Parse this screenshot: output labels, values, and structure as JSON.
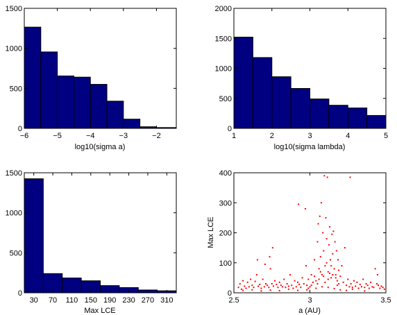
{
  "chart_data": [
    {
      "id": "hist-sigma-a",
      "type": "bar",
      "xlabel": "log10(sigma a)",
      "ylabel": "",
      "xlim": [
        -6,
        -1.4
      ],
      "ylim": [
        0,
        1500
      ],
      "xticks": [
        -6,
        -5,
        -4,
        -3,
        -2
      ],
      "xtick_labels": [
        "−6",
        "−5",
        "−4",
        "−3",
        "−2"
      ],
      "yticks": [
        0,
        500,
        1000,
        1500
      ],
      "bin_edges": [
        -6.0,
        -5.5,
        -5.0,
        -4.5,
        -4.0,
        -3.5,
        -3.0,
        -2.5,
        -2.0,
        -1.4
      ],
      "values": [
        1265,
        955,
        655,
        640,
        550,
        340,
        115,
        20,
        10
      ],
      "bar_color": "#000080"
    },
    {
      "id": "hist-sigma-lambda",
      "type": "bar",
      "xlabel": "log10(sigma lambda)",
      "ylabel": "",
      "xlim": [
        1,
        5
      ],
      "ylim": [
        0,
        2000
      ],
      "xticks": [
        1,
        2,
        3,
        4,
        5
      ],
      "xtick_labels": [
        "1",
        "2",
        "3",
        "4",
        "5"
      ],
      "yticks": [
        0,
        500,
        1000,
        1500,
        2000
      ],
      "bin_edges": [
        1.0,
        1.5,
        2.0,
        2.5,
        3.0,
        3.5,
        4.0,
        4.5,
        5.0
      ],
      "values": [
        1520,
        1180,
        860,
        665,
        490,
        385,
        340,
        215
      ],
      "bar_color": "#000080"
    },
    {
      "id": "hist-max-lce",
      "type": "bar",
      "xlabel": "Max LCE",
      "ylabel": "",
      "xlim": [
        10,
        330
      ],
      "ylim": [
        0,
        1500
      ],
      "xticks": [
        30,
        70,
        110,
        150,
        190,
        230,
        270,
        310
      ],
      "xtick_labels": [
        "30",
        "70",
        "110",
        "150",
        "190",
        "230",
        "270",
        "310"
      ],
      "yticks": [
        0,
        500,
        1000,
        1500
      ],
      "bin_edges": [
        10,
        50,
        90,
        130,
        170,
        210,
        250,
        290,
        330
      ],
      "values": [
        1425,
        240,
        185,
        150,
        90,
        65,
        35,
        25
      ],
      "bar_color": "#000080"
    },
    {
      "id": "scatter-a-vs-lce",
      "type": "scatter",
      "xlabel": "a (AU)",
      "ylabel": "Max LCE",
      "xlim": [
        2.5,
        3.5
      ],
      "ylim": [
        0,
        400
      ],
      "xticks": [
        2.5,
        3,
        3.5
      ],
      "xtick_labels": [
        "2.5",
        "3",
        "3.5"
      ],
      "yticks": [
        0,
        100,
        200,
        300,
        400
      ],
      "marker_color": "#ff0000",
      "points": [
        [
          2.53,
          18
        ],
        [
          2.54,
          30
        ],
        [
          2.55,
          12
        ],
        [
          2.56,
          40
        ],
        [
          2.57,
          22
        ],
        [
          2.58,
          15
        ],
        [
          2.59,
          35
        ],
        [
          2.6,
          20
        ],
        [
          2.61,
          45
        ],
        [
          2.62,
          25
        ],
        [
          2.63,
          18
        ],
        [
          2.64,
          38
        ],
        [
          2.65,
          60
        ],
        [
          2.655,
          110
        ],
        [
          2.66,
          22
        ],
        [
          2.67,
          28
        ],
        [
          2.68,
          15
        ],
        [
          2.69,
          45
        ],
        [
          2.7,
          20
        ],
        [
          2.705,
          95
        ],
        [
          2.71,
          30
        ],
        [
          2.72,
          25
        ],
        [
          2.73,
          18
        ],
        [
          2.735,
          120
        ],
        [
          2.74,
          80
        ],
        [
          2.75,
          30
        ],
        [
          2.755,
          150
        ],
        [
          2.76,
          22
        ],
        [
          2.77,
          40
        ],
        [
          2.78,
          28
        ],
        [
          2.79,
          18
        ],
        [
          2.8,
          35
        ],
        [
          2.81,
          25
        ],
        [
          2.82,
          20
        ],
        [
          2.83,
          45
        ],
        [
          2.84,
          18
        ],
        [
          2.85,
          30
        ],
        [
          2.86,
          22
        ],
        [
          2.87,
          60
        ],
        [
          2.88,
          25
        ],
        [
          2.89,
          15
        ],
        [
          2.9,
          40
        ],
        [
          2.91,
          20
        ],
        [
          2.92,
          35
        ],
        [
          2.925,
          295
        ],
        [
          2.93,
          28
        ],
        [
          2.94,
          18
        ],
        [
          2.95,
          50
        ],
        [
          2.96,
          30
        ],
        [
          2.97,
          280
        ],
        [
          2.975,
          90
        ],
        [
          2.98,
          25
        ],
        [
          2.99,
          45
        ],
        [
          3.0,
          20
        ],
        [
          3.01,
          60
        ],
        [
          3.02,
          35
        ],
        [
          3.03,
          110
        ],
        [
          3.04,
          40
        ],
        [
          3.05,
          170
        ],
        [
          3.055,
          230
        ],
        [
          3.06,
          80
        ],
        [
          3.065,
          255
        ],
        [
          3.07,
          120
        ],
        [
          3.075,
          300
        ],
        [
          3.08,
          60
        ],
        [
          3.085,
          200
        ],
        [
          3.09,
          140
        ],
        [
          3.095,
          390
        ],
        [
          3.1,
          90
        ],
        [
          3.105,
          250
        ],
        [
          3.11,
          180
        ],
        [
          3.115,
          385
        ],
        [
          3.12,
          70
        ],
        [
          3.125,
          160
        ],
        [
          3.13,
          220
        ],
        [
          3.135,
          110
        ],
        [
          3.14,
          50
        ],
        [
          3.145,
          195
        ],
        [
          3.15,
          130
        ],
        [
          3.155,
          205
        ],
        [
          3.16,
          80
        ],
        [
          3.165,
          170
        ],
        [
          3.17,
          60
        ],
        [
          3.175,
          140
        ],
        [
          3.18,
          40
        ],
        [
          3.185,
          110
        ],
        [
          3.19,
          75
        ],
        [
          3.2,
          55
        ],
        [
          3.21,
          90
        ],
        [
          3.22,
          35
        ],
        [
          3.23,
          150
        ],
        [
          3.24,
          25
        ],
        [
          3.25,
          45
        ],
        [
          3.26,
          20
        ],
        [
          3.265,
          385
        ],
        [
          3.27,
          30
        ],
        [
          3.28,
          18
        ],
        [
          3.29,
          40
        ],
        [
          3.3,
          22
        ],
        [
          3.31,
          35
        ],
        [
          3.32,
          15
        ],
        [
          3.33,
          28
        ],
        [
          3.34,
          20
        ],
        [
          3.35,
          45
        ],
        [
          3.36,
          18
        ],
        [
          3.37,
          30
        ],
        [
          3.38,
          25
        ],
        [
          3.39,
          15
        ],
        [
          3.4,
          35
        ],
        [
          3.41,
          20
        ],
        [
          3.42,
          18
        ],
        [
          3.43,
          80
        ],
        [
          3.44,
          30
        ],
        [
          3.445,
          60
        ],
        [
          3.45,
          25
        ],
        [
          3.46,
          15
        ],
        [
          3.47,
          22
        ],
        [
          3.48,
          18
        ],
        [
          3.49,
          12
        ],
        [
          2.56,
          8
        ],
        [
          2.62,
          10
        ],
        [
          2.68,
          6
        ],
        [
          2.74,
          9
        ],
        [
          2.8,
          7
        ],
        [
          2.86,
          12
        ],
        [
          2.92,
          8
        ],
        [
          2.98,
          10
        ],
        [
          3.04,
          15
        ],
        [
          3.08,
          20
        ],
        [
          3.12,
          18
        ],
        [
          3.16,
          14
        ],
        [
          3.2,
          10
        ],
        [
          3.24,
          8
        ],
        [
          3.28,
          12
        ],
        [
          3.36,
          6
        ],
        [
          3.06,
          45
        ],
        [
          3.07,
          70
        ],
        [
          3.09,
          55
        ],
        [
          3.11,
          100
        ],
        [
          3.13,
          65
        ],
        [
          3.14,
          90
        ],
        [
          3.17,
          50
        ],
        [
          3.19,
          30
        ],
        [
          3.1,
          35
        ],
        [
          3.12,
          45
        ],
        [
          3.15,
          60
        ],
        [
          3.18,
          25
        ],
        [
          3.05,
          30
        ],
        [
          3.03,
          55
        ],
        [
          3.01,
          25
        ],
        [
          2.99,
          15
        ]
      ]
    }
  ]
}
